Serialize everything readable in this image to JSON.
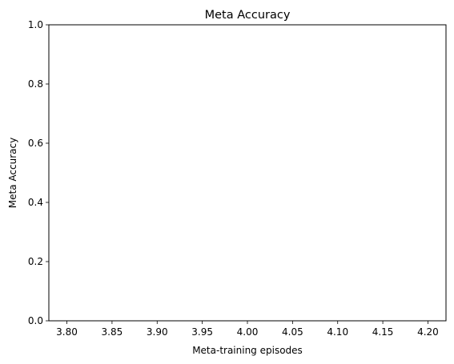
{
  "chart_data": {
    "type": "line",
    "title": "Meta Accuracy",
    "xlabel": "Meta-training episodes",
    "ylabel": "Meta Accuracy",
    "xlim": [
      3.78,
      4.22
    ],
    "ylim": [
      0.0,
      1.0
    ],
    "x_ticks": [
      "3.80",
      "3.85",
      "3.90",
      "3.95",
      "4.00",
      "4.05",
      "4.10",
      "4.15",
      "4.20"
    ],
    "y_ticks": [
      "0.0",
      "0.2",
      "0.4",
      "0.6",
      "0.8",
      "1.0"
    ],
    "grid": false,
    "series": []
  }
}
